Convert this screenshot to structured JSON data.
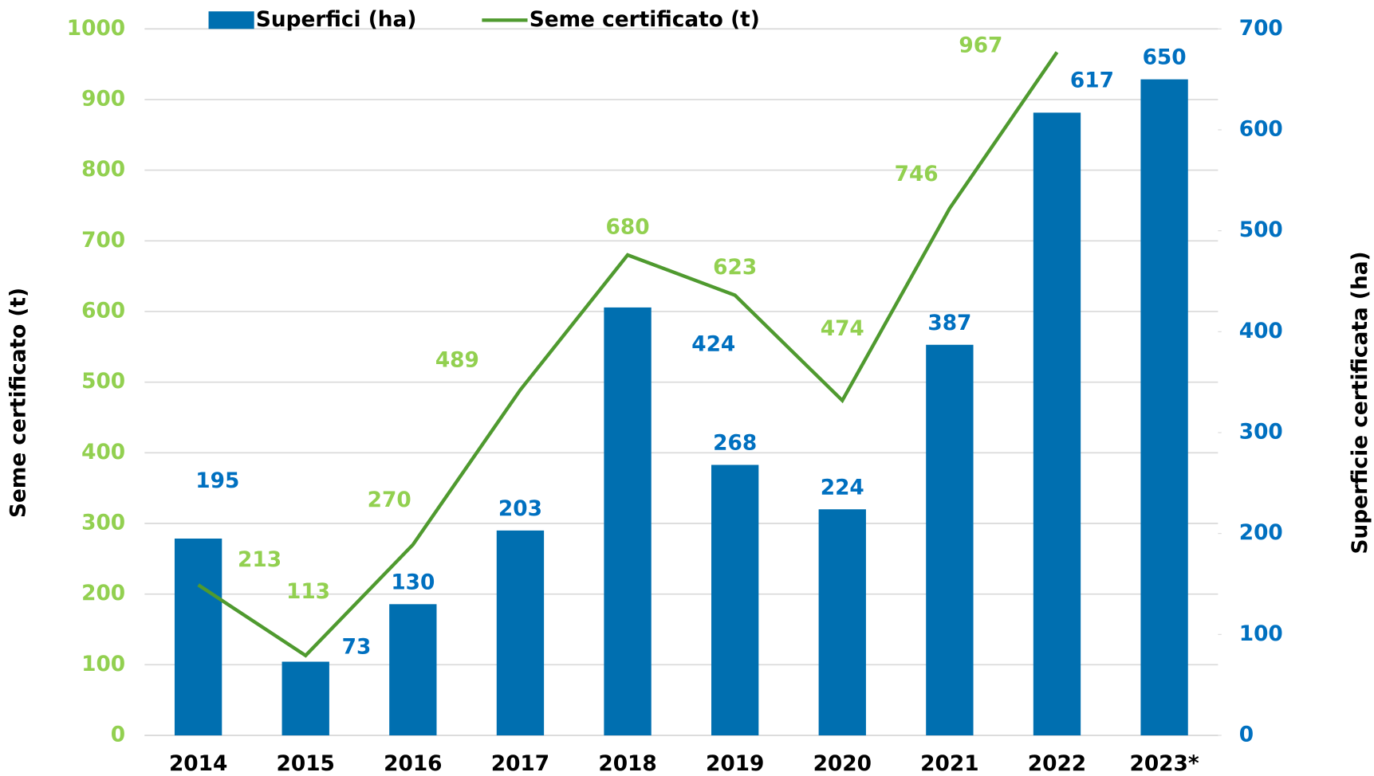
{
  "chart_data": {
    "type": "bar_line",
    "categories": [
      "2014",
      "2015",
      "2016",
      "2017",
      "2018",
      "2019",
      "2020",
      "2021",
      "2022",
      "2023*"
    ],
    "series": [
      {
        "name": "Superfici (ha)",
        "type": "bar",
        "axis": "y2",
        "color": "#006fb0",
        "values": [
          195,
          73,
          130,
          203,
          424,
          268,
          224,
          387,
          617,
          650
        ]
      },
      {
        "name": "Seme certificato (t)",
        "type": "line",
        "axis": "y",
        "color": "#4f9a2f",
        "values": [
          213,
          113,
          270,
          489,
          680,
          623,
          474,
          746,
          967,
          null
        ]
      }
    ],
    "y_label": "Seme certificato (t)",
    "y2_label": "Superficie certificata (ha)",
    "ylim": [
      0,
      1000
    ],
    "yticks": [
      0,
      100,
      200,
      300,
      400,
      500,
      600,
      700,
      800,
      900,
      1000
    ],
    "y2lim": [
      0,
      700
    ],
    "y2ticks": [
      0,
      100,
      200,
      300,
      400,
      500,
      600,
      700
    ],
    "grid": true,
    "legend": "top"
  }
}
